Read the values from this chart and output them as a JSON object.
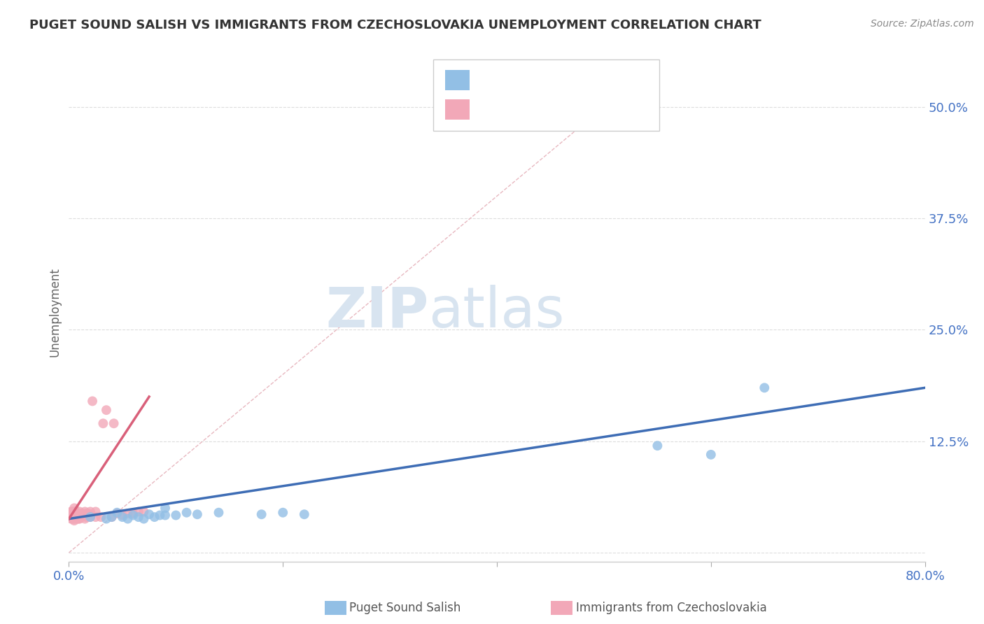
{
  "title": "PUGET SOUND SALISH VS IMMIGRANTS FROM CZECHOSLOVAKIA UNEMPLOYMENT CORRELATION CHART",
  "source": "Source: ZipAtlas.com",
  "ylabel": "Unemployment",
  "yticks": [
    0.0,
    0.125,
    0.25,
    0.375,
    0.5
  ],
  "ytick_labels": [
    "",
    "12.5%",
    "25.0%",
    "37.5%",
    "50.0%"
  ],
  "xlim": [
    0.0,
    0.8
  ],
  "ylim": [
    -0.01,
    0.55
  ],
  "blue_color": "#92BFE5",
  "pink_color": "#F2A8B8",
  "blue_line_color": "#3E6DB5",
  "pink_line_color": "#D9607A",
  "title_color": "#333333",
  "tick_color": "#4472C4",
  "source_color": "#888888",
  "grid_color": "#DDDDDD",
  "blue_scatter_x": [
    0.02,
    0.035,
    0.04,
    0.045,
    0.05,
    0.055,
    0.06,
    0.065,
    0.07,
    0.075,
    0.08,
    0.085,
    0.09,
    0.09,
    0.1,
    0.11,
    0.12,
    0.14,
    0.18,
    0.2,
    0.22,
    0.55,
    0.6,
    0.65
  ],
  "blue_scatter_y": [
    0.04,
    0.038,
    0.04,
    0.045,
    0.04,
    0.038,
    0.042,
    0.04,
    0.038,
    0.043,
    0.04,
    0.042,
    0.042,
    0.05,
    0.042,
    0.045,
    0.043,
    0.045,
    0.043,
    0.045,
    0.043,
    0.12,
    0.11,
    0.185
  ],
  "pink_scatter_x": [
    0.002,
    0.002,
    0.002,
    0.003,
    0.003,
    0.003,
    0.004,
    0.004,
    0.004,
    0.005,
    0.005,
    0.005,
    0.005,
    0.005,
    0.005,
    0.006,
    0.006,
    0.006,
    0.007,
    0.007,
    0.008,
    0.008,
    0.009,
    0.009,
    0.009,
    0.01,
    0.01,
    0.01,
    0.012,
    0.012,
    0.015,
    0.015,
    0.015,
    0.016,
    0.016,
    0.018,
    0.018,
    0.02,
    0.02,
    0.022,
    0.025,
    0.025,
    0.03,
    0.032,
    0.035,
    0.04,
    0.042,
    0.045,
    0.05,
    0.055,
    0.06,
    0.065,
    0.07
  ],
  "pink_scatter_y": [
    0.038,
    0.042,
    0.046,
    0.038,
    0.042,
    0.046,
    0.038,
    0.042,
    0.046,
    0.036,
    0.038,
    0.04,
    0.042,
    0.046,
    0.05,
    0.038,
    0.042,
    0.046,
    0.04,
    0.044,
    0.038,
    0.042,
    0.038,
    0.04,
    0.044,
    0.038,
    0.042,
    0.046,
    0.04,
    0.044,
    0.038,
    0.042,
    0.046,
    0.04,
    0.044,
    0.04,
    0.044,
    0.04,
    0.046,
    0.17,
    0.04,
    0.046,
    0.04,
    0.145,
    0.16,
    0.04,
    0.145,
    0.044,
    0.042,
    0.044,
    0.044,
    0.046,
    0.046
  ],
  "blue_line_x": [
    0.0,
    0.8
  ],
  "blue_line_y": [
    0.038,
    0.185
  ],
  "pink_line_x": [
    0.0,
    0.075
  ],
  "pink_line_y": [
    0.038,
    0.175
  ],
  "diag_line_x": [
    0.0,
    0.55
  ],
  "diag_line_y": [
    0.0,
    0.55
  ]
}
